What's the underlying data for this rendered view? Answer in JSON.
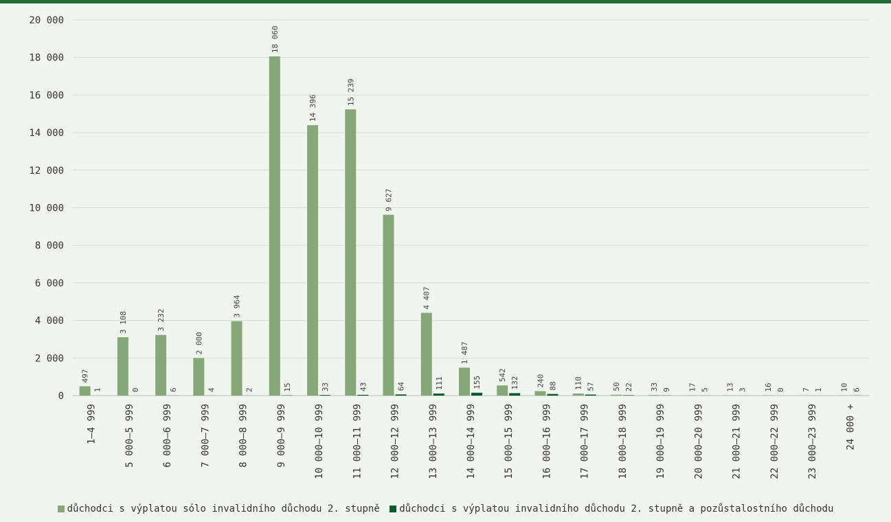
{
  "colors": {
    "accent": "#1e6b34",
    "series1": "#86a878",
    "series2": "#0f5a2c",
    "grid": "#d6ddd2"
  },
  "chart_data": {
    "type": "bar",
    "ylim": [
      0,
      20000
    ],
    "yticks": [
      0,
      2000,
      4000,
      6000,
      8000,
      10000,
      12000,
      14000,
      16000,
      18000,
      20000
    ],
    "ytick_labels": [
      "0",
      "2 000",
      "4 000",
      "6 000",
      "8 000",
      "10 000",
      "12 000",
      "14 000",
      "16 000",
      "18 000",
      "20 000"
    ],
    "grid": true,
    "legend_position": "bottom",
    "categories": [
      "1–4 999",
      "5 000–5 999",
      "6 000–6 999",
      "7 000–7 999",
      "8 000–8 999",
      "9 000–9 999",
      "10 000–10 999",
      "11 000–11 999",
      "12 000–12 999",
      "13 000–13 999",
      "14 000–14 999",
      "15 000–15 999",
      "16 000–16 999",
      "17 000–17 999",
      "18 000–18 999",
      "19 000–19 999",
      "20 000–20 999",
      "21 000–21 999",
      "22 000–22 999",
      "23 000–23 999",
      "24 000 +"
    ],
    "series": [
      {
        "name": "důchodci s výplatou sólo invalidního důchodu 2. stupně",
        "values": [
          497,
          3108,
          3232,
          2000,
          3964,
          18060,
          14396,
          15239,
          9627,
          4407,
          1487,
          542,
          240,
          110,
          50,
          33,
          17,
          13,
          16,
          7,
          10
        ],
        "labels": [
          "497",
          "3 108",
          "3 232",
          "2 000",
          "3 964",
          "18 060",
          "14 396",
          "15 239",
          "9 627",
          "4 407",
          "1 487",
          "542",
          "240",
          "110",
          "50",
          "33",
          "17",
          "13",
          "16",
          "7",
          "10"
        ]
      },
      {
        "name": "důchodci s výplatou invalidního důchodu 2. stupně a pozůstalostního důchodu",
        "values": [
          1,
          0,
          6,
          4,
          2,
          15,
          33,
          43,
          64,
          111,
          155,
          132,
          88,
          57,
          22,
          9,
          5,
          3,
          0,
          1,
          6
        ],
        "labels": [
          "1",
          "0",
          "6",
          "4",
          "2",
          "15",
          "33",
          "43",
          "64",
          "111",
          "155",
          "132",
          "88",
          "57",
          "22",
          "9",
          "5",
          "3",
          "0",
          "1",
          "6"
        ]
      }
    ]
  }
}
